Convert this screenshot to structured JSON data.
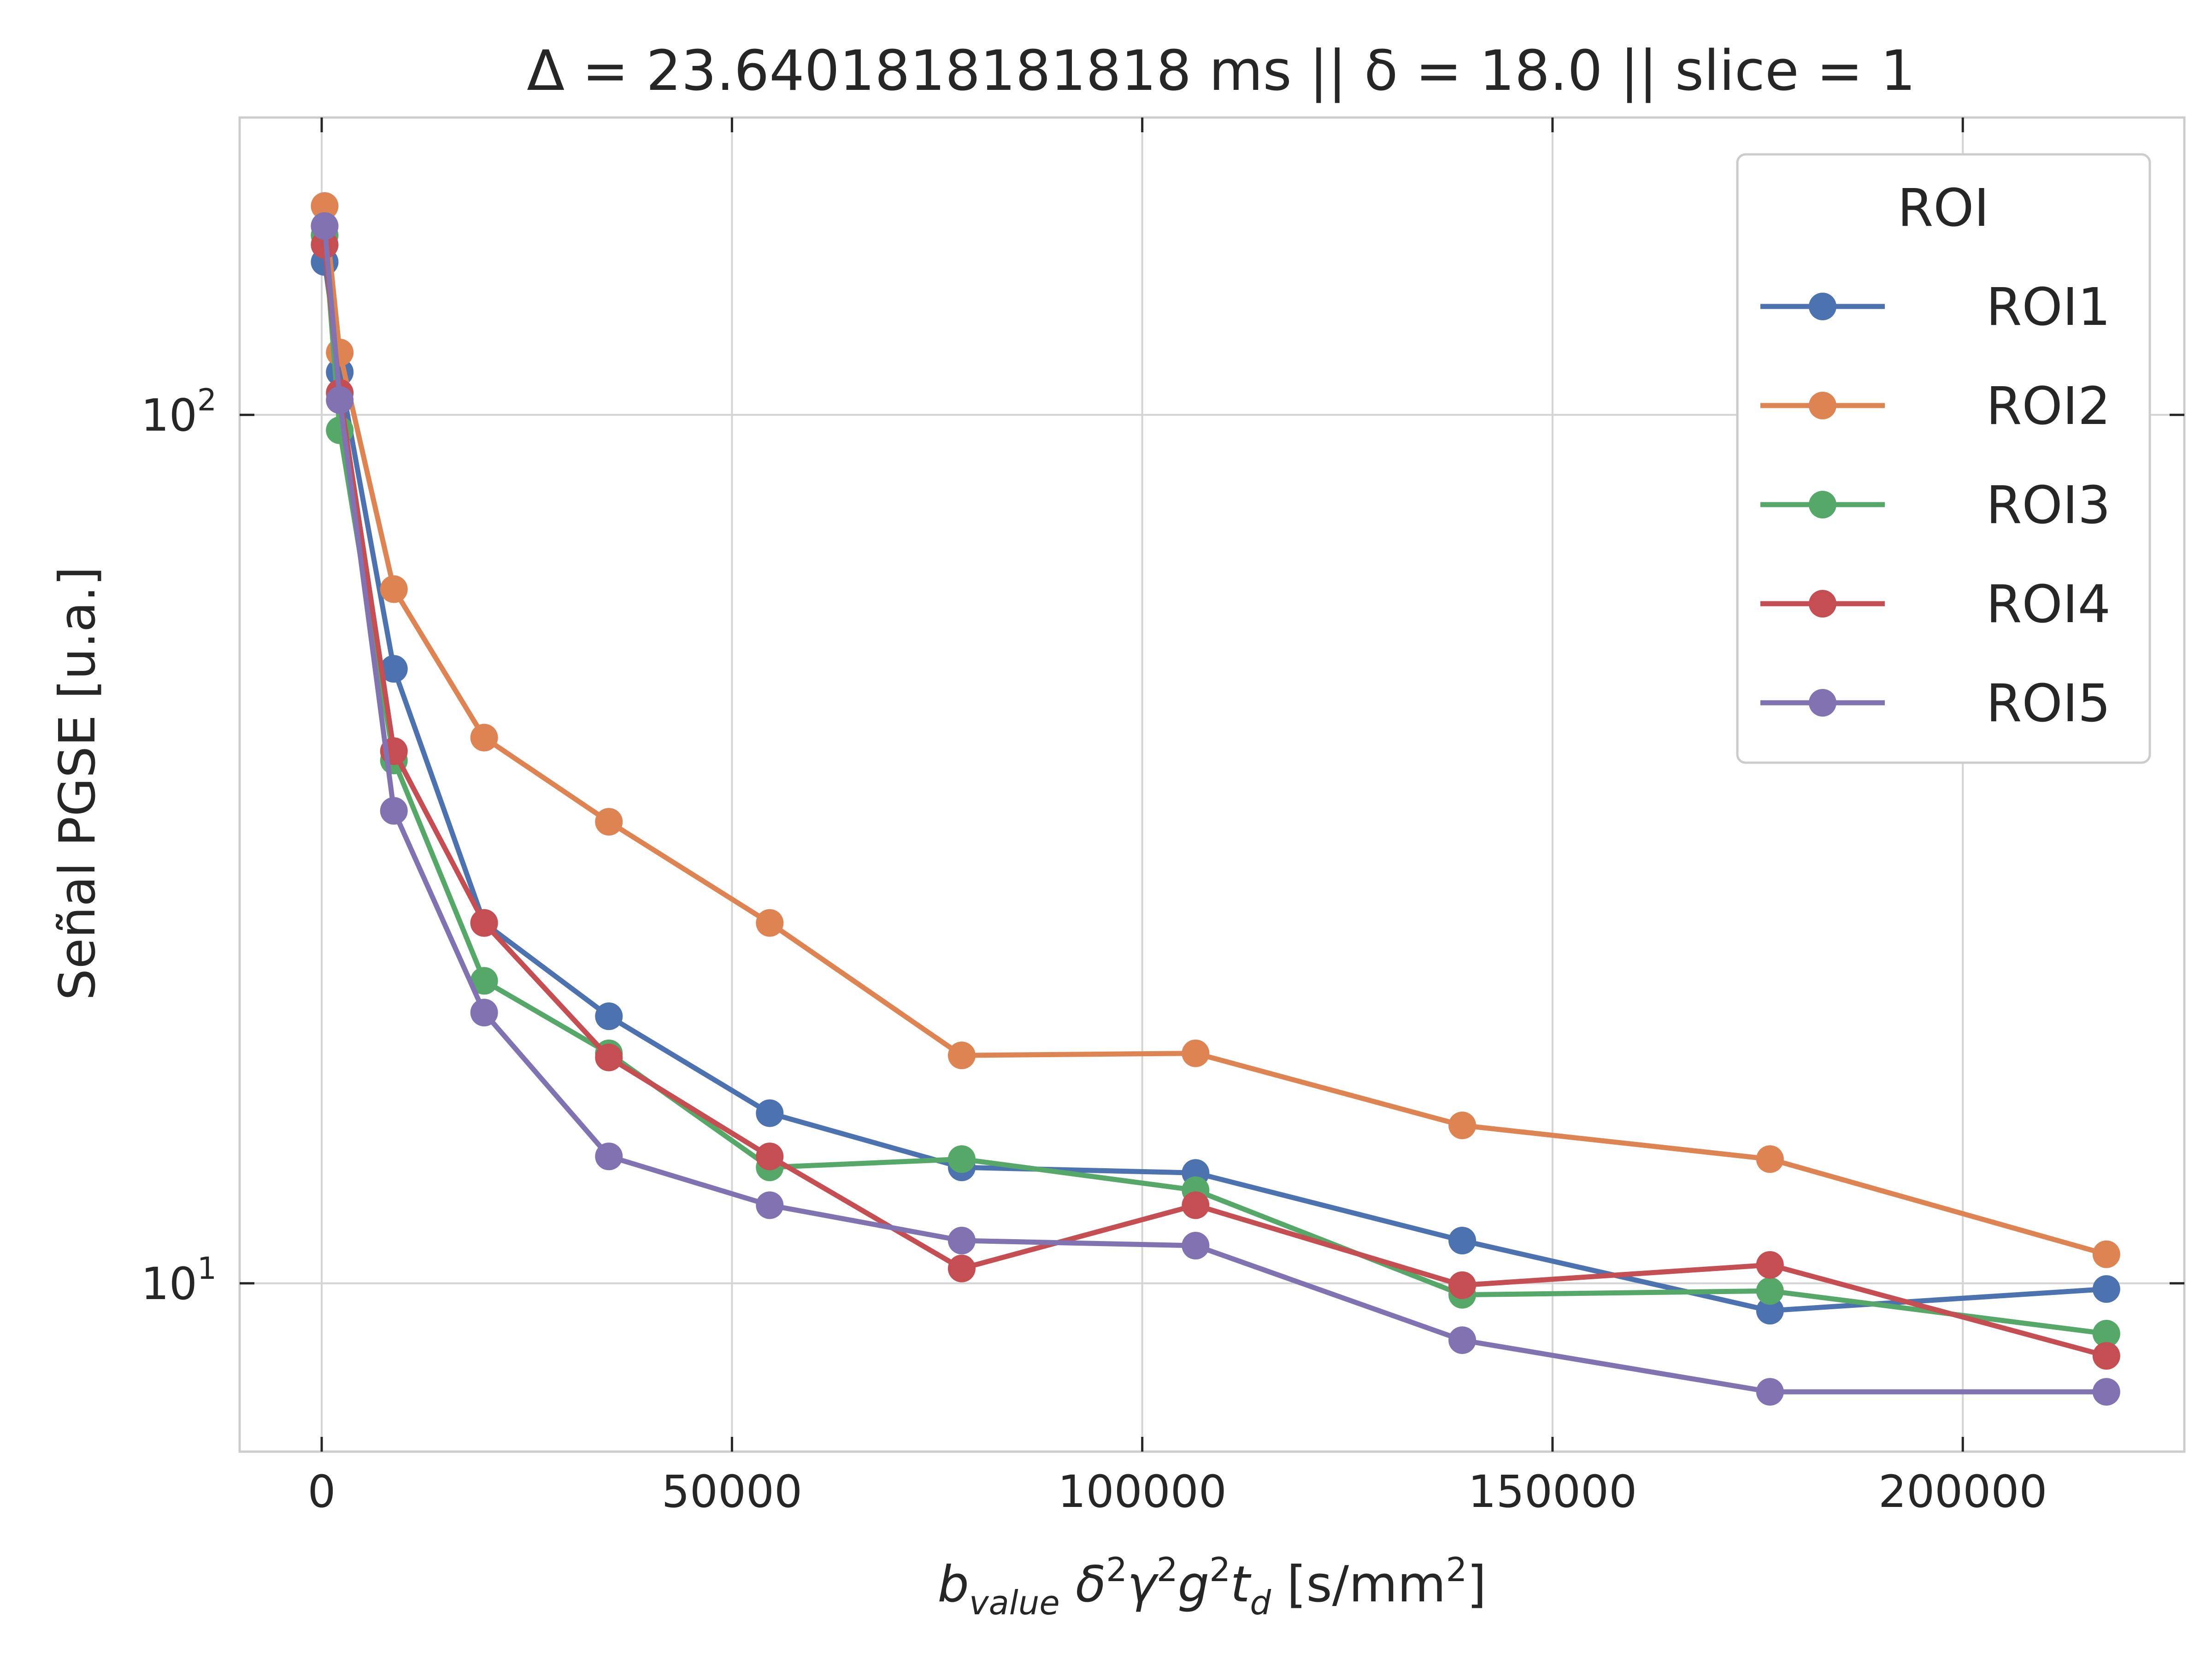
{
  "chart_data": {
    "type": "line",
    "title": "Δ = 23.6401818181818 ms  ||  δ = 18.0 || slice = 1",
    "xlabel": "b_value δ²γ²g²t_d [s/mm²]",
    "xlabel_parts": {
      "main": "b",
      "sub": "value",
      "formula_delta": "δ",
      "formula_gamma": "γ",
      "formula_g": "g",
      "formula_t": "t",
      "sub_d": "d",
      "sup": "2",
      "units": "[s/mm",
      "units_sup": "2",
      "units_close": "]"
    },
    "ylabel": "Señal PGSE [u.a.]",
    "xlim": [
      -10000,
      227000
    ],
    "ylim": [
      6.4,
      220
    ],
    "yscale": "log",
    "grid": true,
    "xticks": [
      0,
      50000,
      100000,
      150000,
      200000
    ],
    "xtick_labels": [
      "0",
      "50000",
      "100000",
      "150000",
      "200000"
    ],
    "yticks": [
      10,
      100
    ],
    "ytick_labels": [
      {
        "base": "10",
        "exp": "1"
      },
      {
        "base": "10",
        "exp": "2"
      }
    ],
    "legend": {
      "title": "ROI",
      "position": "top-right"
    },
    "x": [
      360,
      2200,
      8800,
      19800,
      35000,
      54600,
      78000,
      106500,
      139000,
      176500,
      217500
    ],
    "series": [
      {
        "name": "ROI1",
        "color": "#4c72b0",
        "values": [
          150,
          112,
          51,
          26.0,
          20.3,
          15.7,
          13.6,
          13.4,
          11.2,
          9.3,
          9.85
        ]
      },
      {
        "name": "ROI2",
        "color": "#dd8452",
        "values": [
          174,
          118,
          63,
          42.5,
          34.0,
          26.0,
          18.3,
          18.4,
          15.2,
          13.9,
          10.8
        ]
      },
      {
        "name": "ROI3",
        "color": "#55a868",
        "values": [
          161,
          96,
          40,
          22.3,
          18.4,
          13.6,
          13.9,
          12.8,
          9.7,
          9.8,
          8.75
        ]
      },
      {
        "name": "ROI4",
        "color": "#c44e52",
        "values": [
          157,
          106,
          41,
          26.0,
          18.2,
          14.0,
          10.4,
          12.3,
          9.95,
          10.5,
          8.25
        ]
      },
      {
        "name": "ROI5",
        "color": "#8172b2",
        "values": [
          165,
          104,
          35,
          20.5,
          14.0,
          12.3,
          11.2,
          11.05,
          8.6,
          7.5,
          7.5
        ]
      }
    ]
  }
}
